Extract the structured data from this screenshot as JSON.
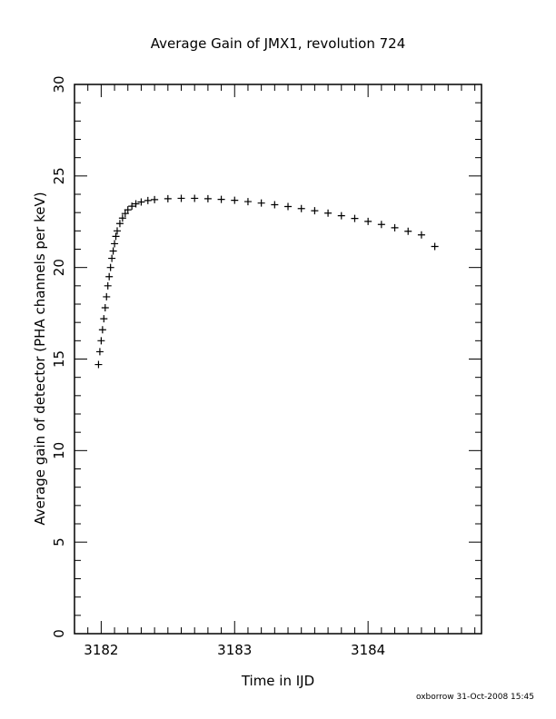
{
  "chart_data": {
    "type": "scatter",
    "title": "Average Gain of JMX1, revolution 724",
    "xlabel": "Time in IJD",
    "ylabel": "Average gain of detector (PHA channels per keV)",
    "xlim": [
      3181.8,
      3184.85
    ],
    "ylim": [
      0,
      30
    ],
    "x_ticks": [
      "3182",
      "3183",
      "3184"
    ],
    "y_ticks": [
      "0",
      "5",
      "10",
      "15",
      "20",
      "25",
      "30"
    ],
    "grid": false,
    "marker": "+",
    "series": [
      {
        "points": [
          [
            3181.98,
            14.7
          ],
          [
            3181.99,
            15.4
          ],
          [
            3182.0,
            16.0
          ],
          [
            3182.01,
            16.6
          ],
          [
            3182.02,
            17.2
          ],
          [
            3182.03,
            17.8
          ],
          [
            3182.04,
            18.4
          ],
          [
            3182.05,
            19.0
          ],
          [
            3182.06,
            19.5
          ],
          [
            3182.07,
            20.0
          ],
          [
            3182.08,
            20.5
          ],
          [
            3182.09,
            20.9
          ],
          [
            3182.1,
            21.3
          ],
          [
            3182.11,
            21.7
          ],
          [
            3182.12,
            22.0
          ],
          [
            3182.14,
            22.4
          ],
          [
            3182.16,
            22.7
          ],
          [
            3182.18,
            22.95
          ],
          [
            3182.2,
            23.15
          ],
          [
            3182.23,
            23.35
          ],
          [
            3182.26,
            23.48
          ],
          [
            3182.3,
            23.58
          ],
          [
            3182.35,
            23.66
          ],
          [
            3182.4,
            23.71
          ],
          [
            3182.5,
            23.76
          ],
          [
            3182.6,
            23.78
          ],
          [
            3182.7,
            23.78
          ],
          [
            3182.8,
            23.76
          ],
          [
            3182.9,
            23.72
          ],
          [
            3183.0,
            23.67
          ],
          [
            3183.1,
            23.6
          ],
          [
            3183.2,
            23.52
          ],
          [
            3183.3,
            23.43
          ],
          [
            3183.4,
            23.33
          ],
          [
            3183.5,
            23.22
          ],
          [
            3183.6,
            23.1
          ],
          [
            3183.7,
            22.97
          ],
          [
            3183.8,
            22.83
          ],
          [
            3183.9,
            22.68
          ],
          [
            3184.0,
            22.52
          ],
          [
            3184.1,
            22.35
          ],
          [
            3184.2,
            22.17
          ],
          [
            3184.3,
            21.98
          ],
          [
            3184.4,
            21.78
          ],
          [
            3184.5,
            21.15
          ]
        ]
      }
    ]
  },
  "footer": {
    "stamp": "oxborrow 31-Oct-2008 15:45"
  }
}
